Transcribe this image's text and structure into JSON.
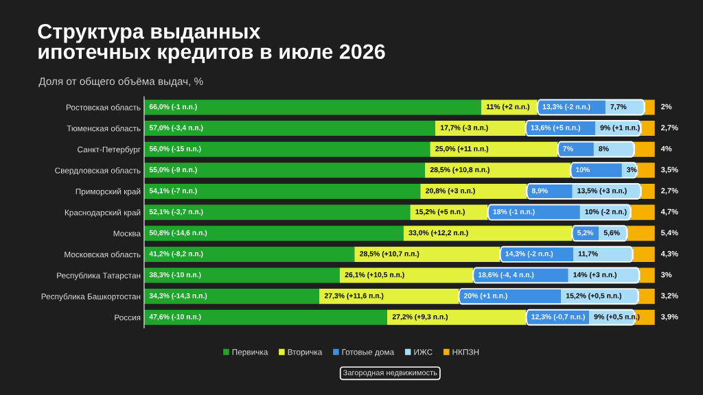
{
  "chart_data": {
    "type": "bar",
    "orientation": "horizontal",
    "stacked": true,
    "title": "Структура выданных\nипотечных кредитов в июле 2026",
    "subtitle": "Доля от общего объёма выдач, %",
    "categories": [
      "Ростовская область",
      "Тюменская область",
      "Санкт-Петербург",
      "Свердловская область",
      "Приморский край",
      "Краснодарский край",
      "Москва",
      "Московская область",
      "Республика Татарстан",
      "Республика Башкортостан",
      "Россия"
    ],
    "series": [
      {
        "name": "Первичка",
        "color": "#1fa52b",
        "values": [
          66.0,
          57.0,
          56.0,
          55.0,
          54.1,
          52.1,
          50.8,
          41.2,
          38.3,
          34.3,
          47.6
        ],
        "value_labels": [
          "66,0% (-1 п.п.)",
          "57,0% (-3,4 п.п.)",
          "56,0% (-15 п.п.)",
          "55,0% (-9 п.п.)",
          "54,1% (-7 п.п.)",
          "52,1% (-3,7 п.п.)",
          "50,8% (-14,6 п.п.)",
          "41,2% (-8,2 п.п.)",
          "38,3% (-10 п.п.)",
          "34,3% (-14,3 п.п.)",
          "47,6% (-10 п.п.)"
        ]
      },
      {
        "name": "Вторичка",
        "color": "#e3f13d",
        "values": [
          11,
          17.7,
          25.0,
          28.5,
          20.8,
          15.2,
          33.0,
          28.5,
          26.1,
          27.3,
          27.2
        ],
        "value_labels": [
          "11% (+2 п.п.)",
          "17,7% (-3 п.п.)",
          "25,0% (+11 п.п.)",
          "28,5% (+10,8 п.п.)",
          "20,8% (+3 п.п.)",
          "15,2% (+5 п.п.)",
          "33,0% (+12,2 п.п.)",
          "28,5% (+10,7 п.п.)",
          "26,1% (+10,5 п.п.)",
          "27,3% (+11,6 п.п.)",
          "27,2% (+9,3 п.п.)"
        ]
      },
      {
        "name": "Готовые дома",
        "color": "#3d8fe3",
        "values": [
          13.3,
          13.6,
          7,
          10,
          8.9,
          18,
          5.2,
          14.3,
          18.6,
          20,
          12.3
        ],
        "value_labels": [
          "13,3% (-2 п.п.)",
          "13,6% (+5 п.п.)",
          "7%",
          "10%",
          "8,9%",
          "18% (-1 п.п.)",
          "5,2%",
          "14,3% (-2 п.п.)",
          "18,6% (-4, 4 п.п.)",
          "20% (+1 п.п.)",
          "12,3% (-0,7 п.п.)"
        ]
      },
      {
        "name": "ИЖС",
        "color": "#a9dcf6",
        "values": [
          7.7,
          9,
          8,
          3,
          13.5,
          10,
          5.6,
          11.7,
          14,
          15.2,
          9
        ],
        "value_labels": [
          "7,7%",
          "9% (+1 п.п.)",
          "8%",
          "3%",
          "13,5% (+3 п.п.)",
          "10% (-2 п.п.)",
          "5,6%",
          "11,7%",
          "14% (+3 п.п.)",
          "15,2% (+0,5 п.п.)",
          "9% (+0,5 п.п.)"
        ]
      },
      {
        "name": "НКПЗН",
        "color": "#f5b000",
        "values": [
          2,
          2.7,
          4,
          3.5,
          2.7,
          4.7,
          5.4,
          4.3,
          3,
          3.2,
          3.9
        ],
        "value_labels": [
          "2%",
          "2,7%",
          "4%",
          "3,5%",
          "2,7%",
          "4,7%",
          "5,4%",
          "4,3%",
          "3%",
          "3,2%",
          "3,9%"
        ]
      }
    ],
    "annotations": [
      "Загородная недвижимость"
    ],
    "legend": "bottom",
    "tick_labels": "y",
    "grid": false
  }
}
